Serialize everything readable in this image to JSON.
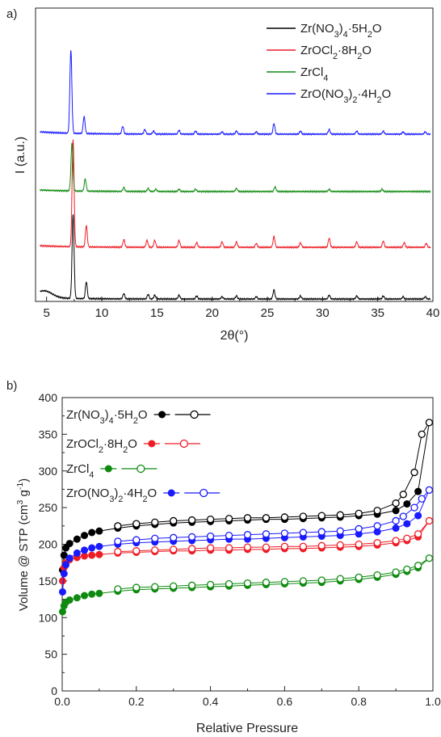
{
  "colors": {
    "black": "#000000",
    "red": "#ee1c25",
    "green": "#0f8a10",
    "blue": "#1a1aff"
  },
  "chart_data": [
    {
      "panel_label": "a)",
      "type": "line",
      "xlabel": "2θ(°)",
      "ylabel": "I (a.u.)",
      "xlim": [
        4,
        40
      ],
      "xticks": [
        5,
        10,
        15,
        20,
        25,
        30,
        35,
        40
      ],
      "legend_position": "top-right",
      "series": [
        {
          "name": "Zr(NO3)4·5H2O",
          "color": "#000000",
          "peaks": [
            [
              7.4,
              110
            ],
            [
              8.6,
              22
            ],
            [
              12.0,
              7
            ],
            [
              14.2,
              6
            ],
            [
              14.8,
              5
            ],
            [
              17.0,
              5
            ],
            [
              18.6,
              4
            ],
            [
              20.9,
              3
            ],
            [
              22.2,
              4
            ],
            [
              24.0,
              3
            ],
            [
              25.6,
              12
            ],
            [
              28.0,
              4
            ],
            [
              30.6,
              5
            ],
            [
              33.1,
              4
            ],
            [
              35.5,
              4
            ],
            [
              37.3,
              3
            ],
            [
              39.3,
              3
            ]
          ]
        },
        {
          "name": "ZrOCl2·8H2O",
          "color": "#ee1c25",
          "peaks": [
            [
              7.4,
              140
            ],
            [
              8.6,
              28
            ],
            [
              12.0,
              10
            ],
            [
              14.1,
              9
            ],
            [
              14.8,
              9
            ],
            [
              17.0,
              9
            ],
            [
              18.6,
              6
            ],
            [
              20.9,
              7
            ],
            [
              22.2,
              7
            ],
            [
              24.0,
              5
            ],
            [
              25.6,
              14
            ],
            [
              28.0,
              6
            ],
            [
              30.6,
              12
            ],
            [
              33.1,
              7
            ],
            [
              35.5,
              8
            ],
            [
              37.4,
              6
            ],
            [
              39.4,
              5
            ]
          ]
        },
        {
          "name": "ZrCl4",
          "color": "#0f8a10",
          "peaks": [
            [
              7.3,
              62
            ],
            [
              8.5,
              16
            ],
            [
              12.0,
              5
            ],
            [
              14.2,
              4
            ],
            [
              14.9,
              3
            ],
            [
              17.0,
              3
            ],
            [
              18.5,
              3
            ],
            [
              22.2,
              4
            ],
            [
              25.7,
              6
            ],
            [
              30.6,
              3
            ],
            [
              35.4,
              3
            ]
          ]
        },
        {
          "name": "ZrO(NO3)2·4H2O",
          "color": "#1a1aff",
          "peaks": [
            [
              7.2,
              108
            ],
            [
              8.4,
              22
            ],
            [
              11.9,
              10
            ],
            [
              13.9,
              6
            ],
            [
              14.7,
              4
            ],
            [
              17.0,
              5
            ],
            [
              18.5,
              4
            ],
            [
              20.9,
              3
            ],
            [
              22.2,
              4
            ],
            [
              24.0,
              3
            ],
            [
              25.6,
              14
            ],
            [
              28.0,
              4
            ],
            [
              30.6,
              6
            ],
            [
              33.1,
              4
            ],
            [
              35.5,
              4
            ],
            [
              37.3,
              3
            ],
            [
              39.3,
              3
            ]
          ]
        }
      ]
    },
    {
      "panel_label": "b)",
      "type": "scatter",
      "xlabel": "Relative Pressure",
      "ylabel": "Volume @ STP (cm3 g-1)",
      "xlim": [
        0,
        1
      ],
      "ylim": [
        0,
        400
      ],
      "xticks": [
        0.0,
        0.2,
        0.4,
        0.6,
        0.8,
        1.0
      ],
      "yticks": [
        0,
        50,
        100,
        150,
        200,
        250,
        300,
        350,
        400
      ],
      "legend_position": "top-left",
      "series": [
        {
          "name": "Zr(NO3)4·5H2O",
          "color": "#000000",
          "adsorption": [
            [
              0.001,
              165
            ],
            [
              0.005,
              185
            ],
            [
              0.01,
              195
            ],
            [
              0.02,
              201
            ],
            [
              0.04,
              207
            ],
            [
              0.06,
              212
            ],
            [
              0.08,
              216
            ],
            [
              0.1,
              218
            ],
            [
              0.15,
              222
            ],
            [
              0.2,
              225
            ],
            [
              0.25,
              227
            ],
            [
              0.3,
              229
            ],
            [
              0.35,
              230
            ],
            [
              0.4,
              231
            ],
            [
              0.45,
              232
            ],
            [
              0.5,
              233
            ],
            [
              0.55,
              234
            ],
            [
              0.6,
              234
            ],
            [
              0.65,
              235
            ],
            [
              0.7,
              236
            ],
            [
              0.75,
              237
            ],
            [
              0.8,
              239
            ],
            [
              0.85,
              241
            ],
            [
              0.9,
              246
            ],
            [
              0.93,
              255
            ],
            [
              0.96,
              272
            ],
            [
              0.99,
              366
            ]
          ],
          "desorption": [
            [
              0.99,
              366
            ],
            [
              0.97,
              350
            ],
            [
              0.95,
              298
            ],
            [
              0.92,
              268
            ],
            [
              0.9,
              256
            ],
            [
              0.85,
              246
            ],
            [
              0.8,
              242
            ],
            [
              0.75,
              240
            ],
            [
              0.7,
              239
            ],
            [
              0.65,
              238
            ],
            [
              0.6,
              237
            ],
            [
              0.55,
              236
            ],
            [
              0.5,
              236
            ],
            [
              0.45,
              235
            ],
            [
              0.4,
              234
            ],
            [
              0.35,
              233
            ],
            [
              0.3,
              232
            ],
            [
              0.25,
              230
            ],
            [
              0.2,
              228
            ],
            [
              0.15,
              225
            ]
          ]
        },
        {
          "name": "ZrOCl2·8H2O",
          "color": "#ee1c25",
          "adsorption": [
            [
              0.001,
              150
            ],
            [
              0.005,
              168
            ],
            [
              0.01,
              175
            ],
            [
              0.02,
              179
            ],
            [
              0.04,
              182
            ],
            [
              0.06,
              184
            ],
            [
              0.08,
              185
            ],
            [
              0.1,
              186
            ],
            [
              0.15,
              188
            ],
            [
              0.2,
              189
            ],
            [
              0.25,
              190
            ],
            [
              0.3,
              191
            ],
            [
              0.35,
              191
            ],
            [
              0.4,
              192
            ],
            [
              0.45,
              192
            ],
            [
              0.5,
              193
            ],
            [
              0.55,
              193
            ],
            [
              0.6,
              194
            ],
            [
              0.65,
              194
            ],
            [
              0.7,
              195
            ],
            [
              0.75,
              196
            ],
            [
              0.8,
              197
            ],
            [
              0.85,
              199
            ],
            [
              0.9,
              202
            ],
            [
              0.93,
              205
            ],
            [
              0.96,
              210
            ],
            [
              0.99,
              232
            ]
          ],
          "desorption": [
            [
              0.99,
              232
            ],
            [
              0.96,
              214
            ],
            [
              0.93,
              208
            ],
            [
              0.9,
              205
            ],
            [
              0.85,
              202
            ],
            [
              0.8,
              200
            ],
            [
              0.75,
              199
            ],
            [
              0.7,
              198
            ],
            [
              0.65,
              197
            ],
            [
              0.6,
              197
            ],
            [
              0.55,
              196
            ],
            [
              0.5,
              196
            ],
            [
              0.45,
              195
            ],
            [
              0.4,
              195
            ],
            [
              0.35,
              194
            ],
            [
              0.3,
              193
            ],
            [
              0.25,
              192
            ],
            [
              0.2,
              191
            ],
            [
              0.15,
              190
            ]
          ]
        },
        {
          "name": "ZrCl4",
          "color": "#0f8a10",
          "adsorption": [
            [
              0.001,
              108
            ],
            [
              0.005,
              116
            ],
            [
              0.01,
              121
            ],
            [
              0.02,
              124
            ],
            [
              0.04,
              127
            ],
            [
              0.06,
              130
            ],
            [
              0.08,
              132
            ],
            [
              0.1,
              133
            ],
            [
              0.15,
              136
            ],
            [
              0.2,
              138
            ],
            [
              0.25,
              139
            ],
            [
              0.3,
              140
            ],
            [
              0.35,
              141
            ],
            [
              0.4,
              142
            ],
            [
              0.45,
              143
            ],
            [
              0.5,
              144
            ],
            [
              0.55,
              145
            ],
            [
              0.6,
              146
            ],
            [
              0.65,
              147
            ],
            [
              0.7,
              148
            ],
            [
              0.75,
              150
            ],
            [
              0.8,
              152
            ],
            [
              0.85,
              155
            ],
            [
              0.9,
              159
            ],
            [
              0.93,
              163
            ],
            [
              0.96,
              168
            ],
            [
              0.99,
              181
            ]
          ],
          "desorption": [
            [
              0.99,
              181
            ],
            [
              0.96,
              171
            ],
            [
              0.93,
              166
            ],
            [
              0.9,
              162
            ],
            [
              0.85,
              158
            ],
            [
              0.8,
              155
            ],
            [
              0.75,
              153
            ],
            [
              0.7,
              151
            ],
            [
              0.65,
              150
            ],
            [
              0.6,
              149
            ],
            [
              0.55,
              148
            ],
            [
              0.5,
              147
            ],
            [
              0.45,
              146
            ],
            [
              0.4,
              145
            ],
            [
              0.35,
              144
            ],
            [
              0.3,
              143
            ],
            [
              0.25,
              142
            ],
            [
              0.2,
              141
            ],
            [
              0.15,
              139
            ]
          ]
        },
        {
          "name": "ZrO(NO3)2·4H2O",
          "color": "#1a1aff",
          "adsorption": [
            [
              0.001,
              135
            ],
            [
              0.005,
              160
            ],
            [
              0.01,
              172
            ],
            [
              0.02,
              181
            ],
            [
              0.04,
              188
            ],
            [
              0.06,
              192
            ],
            [
              0.08,
              195
            ],
            [
              0.1,
              197
            ],
            [
              0.15,
              200
            ],
            [
              0.2,
              202
            ],
            [
              0.25,
              203
            ],
            [
              0.3,
              204
            ],
            [
              0.35,
              205
            ],
            [
              0.4,
              206
            ],
            [
              0.45,
              207
            ],
            [
              0.5,
              207
            ],
            [
              0.55,
              208
            ],
            [
              0.6,
              209
            ],
            [
              0.65,
              210
            ],
            [
              0.7,
              211
            ],
            [
              0.75,
              212
            ],
            [
              0.8,
              214
            ],
            [
              0.85,
              217
            ],
            [
              0.9,
              222
            ],
            [
              0.93,
              228
            ],
            [
              0.96,
              239
            ],
            [
              0.99,
              274
            ]
          ],
          "desorption": [
            [
              0.99,
              274
            ],
            [
              0.97,
              262
            ],
            [
              0.95,
              250
            ],
            [
              0.92,
              238
            ],
            [
              0.9,
              232
            ],
            [
              0.85,
              225
            ],
            [
              0.8,
              221
            ],
            [
              0.75,
              218
            ],
            [
              0.7,
              217
            ],
            [
              0.65,
              216
            ],
            [
              0.6,
              215
            ],
            [
              0.55,
              214
            ],
            [
              0.5,
              213
            ],
            [
              0.45,
              212
            ],
            [
              0.4,
              211
            ],
            [
              0.35,
              210
            ],
            [
              0.3,
              209
            ],
            [
              0.25,
              208
            ],
            [
              0.2,
              206
            ],
            [
              0.15,
              204
            ]
          ]
        }
      ]
    }
  ]
}
